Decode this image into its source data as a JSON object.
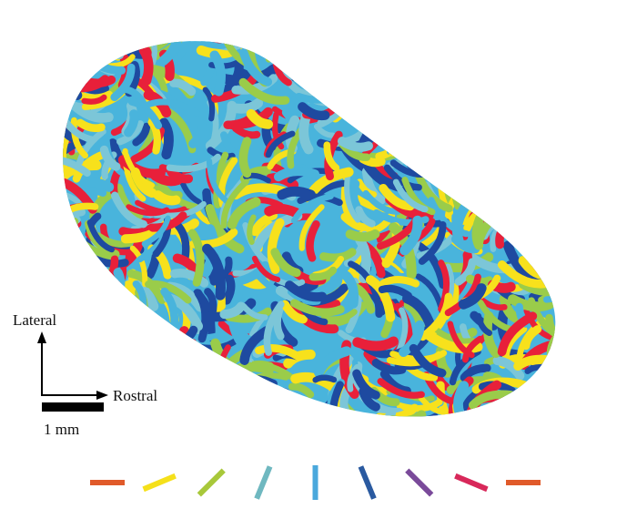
{
  "orientation": {
    "lateral_label": "Lateral",
    "rostral_label": "Rostral"
  },
  "scale_bar": {
    "label": "1 mm"
  },
  "map_palette": [
    "#e8203a",
    "#f7e11c",
    "#49b4dc",
    "#1e4aa0",
    "#9acc4a",
    "#7cc6d8"
  ],
  "orientation_key": [
    {
      "angle_deg": 0,
      "color": "#e05a2a"
    },
    {
      "angle_deg": 22.5,
      "color": "#f5e01a"
    },
    {
      "angle_deg": 45,
      "color": "#a8c83a"
    },
    {
      "angle_deg": 67.5,
      "color": "#6fb8c0"
    },
    {
      "angle_deg": 90,
      "color": "#4aa8dc"
    },
    {
      "angle_deg": 112.5,
      "color": "#2a5aa0"
    },
    {
      "angle_deg": 135,
      "color": "#7a4a9a"
    },
    {
      "angle_deg": 157.5,
      "color": "#d8285a"
    },
    {
      "angle_deg": 180,
      "color": "#e05a2a"
    }
  ]
}
